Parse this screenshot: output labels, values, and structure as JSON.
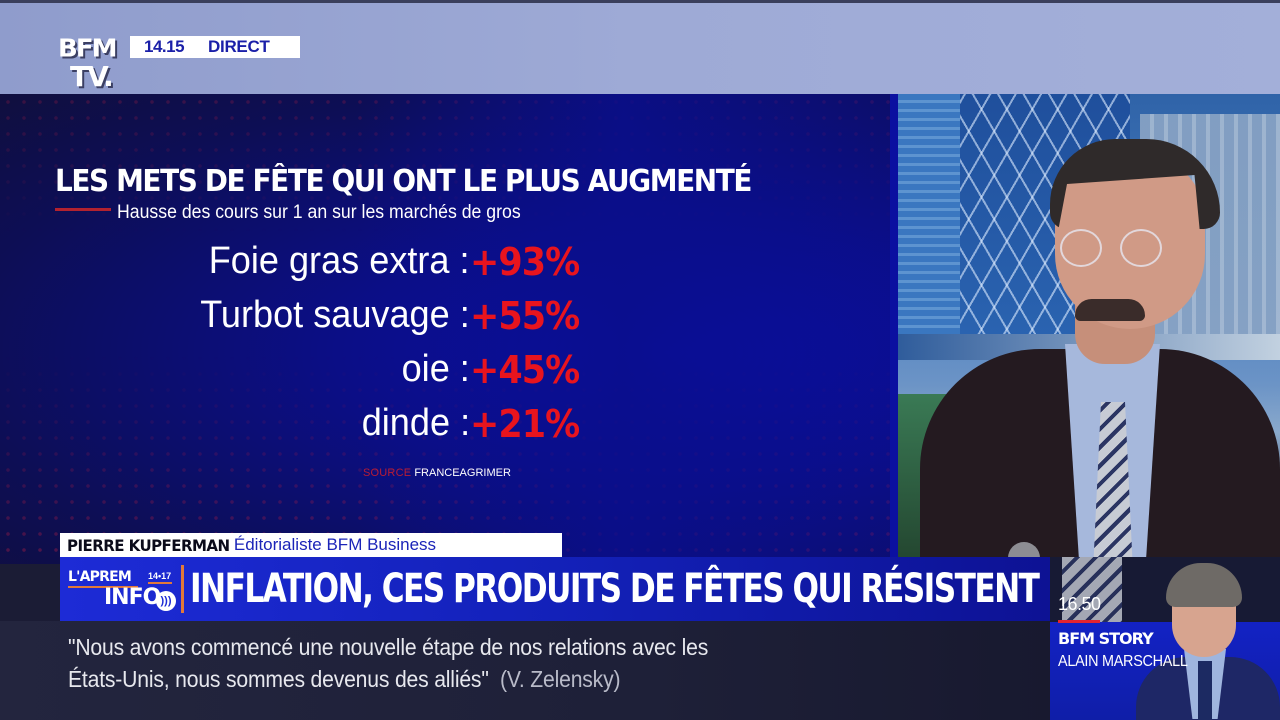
{
  "channel": {
    "logo_line1": "BFM",
    "logo_line2": "TV.",
    "time": "14.15",
    "live_label": "DIRECT"
  },
  "graphic": {
    "title": "LES METS DE FÊTE QUI ONT LE PLUS AUGMENTÉ",
    "subtitle": "Hausse des cours sur 1 an sur les marchés de gros",
    "items": [
      {
        "label": "Foie gras extra :",
        "value": "+93%"
      },
      {
        "label": "Turbot sauvage :",
        "value": "+55%"
      },
      {
        "label": "oie :",
        "value": "+45%"
      },
      {
        "label": "dinde :",
        "value": "+21%"
      }
    ],
    "source_key": "SOURCE",
    "source_value": "FRANCEAGRIMER",
    "colors": {
      "value": "#e8141e",
      "accent_rule": "#b3222f",
      "background": "#0b0e86"
    }
  },
  "guest": {
    "name": "PIERRE KUPFERMAN",
    "role": "Éditorialiste BFM Business"
  },
  "headline": {
    "show_line1": "L'APREM",
    "show_hours": "14•17",
    "show_line2": "INFO",
    "show_icon": "sound-waves-icon",
    "text": "INFLATION, CES PRODUITS DE FÊTES QUI RÉSISTENT",
    "colors": {
      "bar": "#1321b9",
      "separator": "#e1793a"
    }
  },
  "ticker": {
    "line1": "\"Nous avons commencé une nouvelle étape de nos relations avec les",
    "line2": "États-Unis, nous sommes devenus des alliés\"",
    "attribution": "(V. Zelensky)"
  },
  "next_program": {
    "time": "16.50",
    "title": "BFM STORY",
    "host": "ALAIN MARSCHALL"
  }
}
